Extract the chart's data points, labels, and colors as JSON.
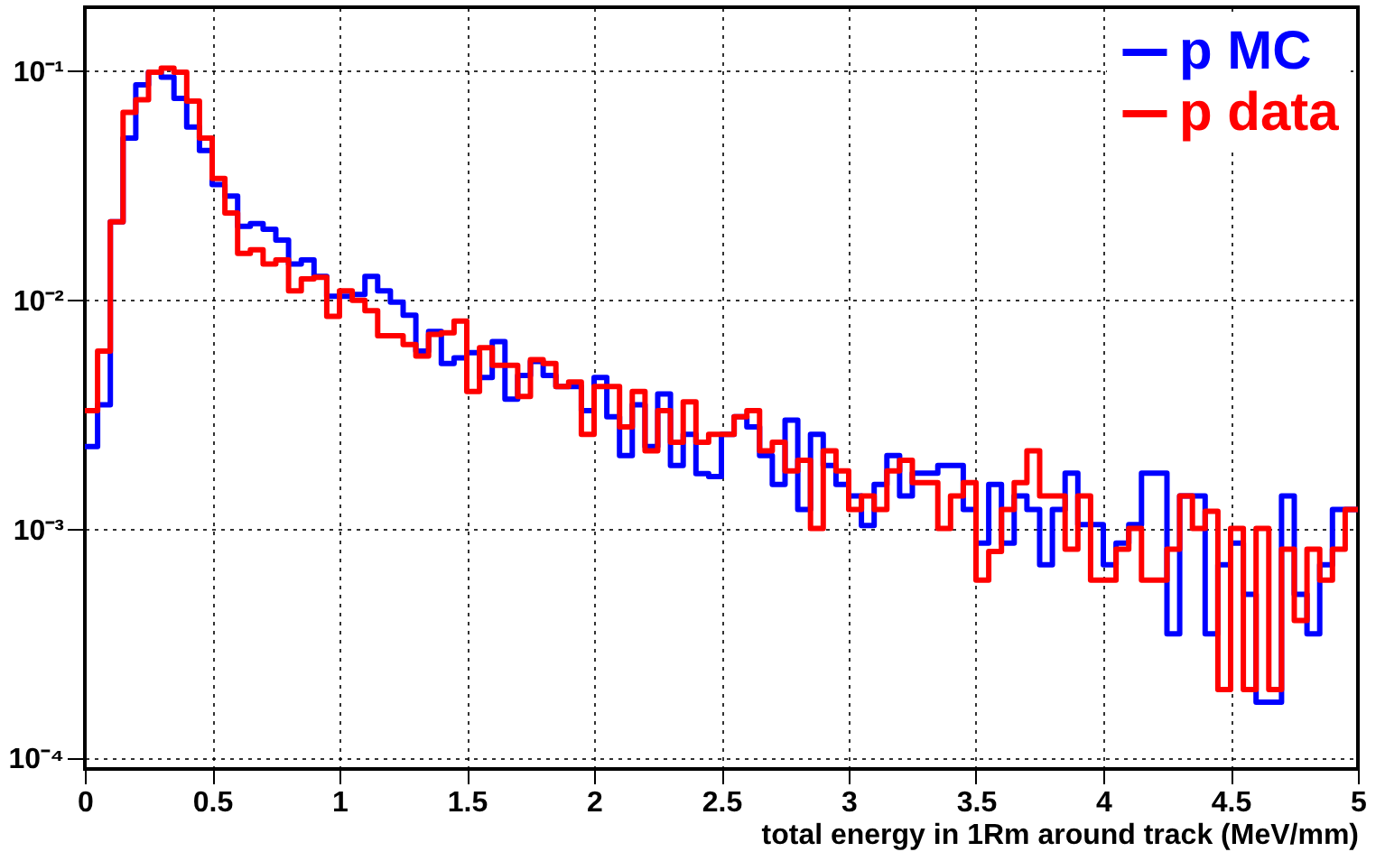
{
  "chart_data": {
    "type": "histogram",
    "xlabel": "total energy in 1Rm around track (MeV/mm)",
    "bins": [
      0,
      0.05,
      0.1,
      0.15,
      0.2,
      0.25,
      0.3,
      0.35,
      0.4,
      0.45,
      0.5,
      0.55,
      0.6,
      0.65,
      0.7,
      0.75,
      0.8,
      0.85,
      0.9,
      0.95,
      1,
      1.05,
      1.1,
      1.15,
      1.2,
      1.25,
      1.3,
      1.35,
      1.4,
      1.45,
      1.5,
      1.55,
      1.6,
      1.65,
      1.7,
      1.75,
      1.8,
      1.85,
      1.9,
      1.95,
      2,
      2.05,
      2.1,
      2.15,
      2.2,
      2.25,
      2.3,
      2.35,
      2.4,
      2.45,
      2.5,
      2.55,
      2.6,
      2.65,
      2.7,
      2.75,
      2.8,
      2.85,
      2.9,
      2.95,
      3,
      3.05,
      3.1,
      3.15,
      3.2,
      3.25,
      3.3,
      3.35,
      3.4,
      3.45,
      3.5,
      3.55,
      3.6,
      3.65,
      3.7,
      3.75,
      3.8,
      3.85,
      3.9,
      3.95,
      4,
      4.05,
      4.1,
      4.15,
      4.2,
      4.25,
      4.3,
      4.35,
      4.4,
      4.45,
      4.5,
      4.55,
      4.6,
      4.65,
      4.7,
      4.75,
      4.8,
      4.85,
      4.9,
      4.95,
      5
    ],
    "series": [
      {
        "name": "p MC",
        "color": "#0000ff",
        "values": [
          0.0023,
          0.0035,
          0.022,
          0.051,
          0.087,
          0.099,
          0.094,
          0.076,
          0.057,
          0.045,
          0.032,
          0.0285,
          0.021,
          0.0216,
          0.0204,
          0.0183,
          0.0144,
          0.015,
          0.0127,
          0.0104,
          0.0104,
          0.0106,
          0.0127,
          0.011,
          0.0098,
          0.0086,
          0.006,
          0.0073,
          0.0053,
          0.0056,
          0.0059,
          0.0046,
          0.0066,
          0.0037,
          0.0047,
          0.0054,
          0.0047,
          0.0042,
          0.0042,
          0.0033,
          0.0046,
          0.0031,
          0.0021,
          0.0035,
          0.0023,
          0.0039,
          0.0019,
          0.0026,
          0.00175,
          0.0017,
          0.0026,
          0.0031,
          0.0028,
          0.0021,
          0.00157,
          0.003,
          0.00122,
          0.0026,
          0.0019,
          0.00157,
          0.0014,
          0.00104,
          0.00157,
          0.0021,
          0.0014,
          0.00176,
          0.00176,
          0.0019,
          0.0019,
          0.00122,
          0.00087,
          0.00157,
          0.00087,
          0.0014,
          0.00122,
          0.0007,
          0.00122,
          0.00176,
          0.00105,
          0.00105,
          0.0007,
          0.00087,
          0.00105,
          0.00176,
          0.00176,
          0.00035,
          0.0014,
          0.0014,
          0.00035,
          0.0007,
          0.00087,
          0.00052,
          0.000176,
          0.000176,
          0.0014,
          0.00052,
          0.00035,
          0.0007,
          0.00122,
          0.00122
        ]
      },
      {
        "name": "p data",
        "color": "#ff0000",
        "values": [
          0.0033,
          0.006,
          0.022,
          0.066,
          0.075,
          0.099,
          0.103,
          0.099,
          0.074,
          0.051,
          0.034,
          0.024,
          0.016,
          0.0166,
          0.0144,
          0.015,
          0.011,
          0.0124,
          0.0126,
          0.0085,
          0.011,
          0.01,
          0.009,
          0.007,
          0.007,
          0.0064,
          0.0057,
          0.0071,
          0.0072,
          0.0081,
          0.004,
          0.0062,
          0.0052,
          0.0052,
          0.0038,
          0.0055,
          0.0053,
          0.0042,
          0.0044,
          0.0026,
          0.0042,
          0.0042,
          0.0028,
          0.004,
          0.0022,
          0.0033,
          0.0024,
          0.0036,
          0.0024,
          0.0026,
          0.0026,
          0.0031,
          0.0033,
          0.0022,
          0.0024,
          0.0018,
          0.002,
          0.00101,
          0.0022,
          0.0018,
          0.00122,
          0.0014,
          0.00122,
          0.0018,
          0.002,
          0.0016,
          0.0016,
          0.00101,
          0.0014,
          0.0016,
          0.0006,
          0.0008,
          0.00122,
          0.0016,
          0.0022,
          0.0014,
          0.0014,
          0.00082,
          0.0014,
          0.0006,
          0.0006,
          0.00082,
          0.00101,
          0.0006,
          0.0006,
          0.00082,
          0.0014,
          0.00101,
          0.0012,
          0.0002,
          0.00101,
          0.0002,
          0.00101,
          0.0002,
          0.00082,
          0.0004,
          0.00082,
          0.0006,
          0.00082,
          0.00122
        ]
      }
    ],
    "xlim": [
      0,
      5
    ],
    "xticks": [
      0,
      0.5,
      1,
      1.5,
      2,
      2.5,
      3,
      3.5,
      4,
      4.5,
      5
    ],
    "log": "y",
    "ylim": [
      9e-05,
      0.19
    ],
    "yticks": [
      {
        "value": 0.0001,
        "label": "10⁻⁴"
      },
      {
        "value": 0.001,
        "label": "10⁻³"
      },
      {
        "value": 0.01,
        "label": "10⁻²"
      },
      {
        "value": 0.1,
        "label": "10⁻¹"
      }
    ],
    "grid": true,
    "legend": "top right",
    "line_style": "solid",
    "marker": "none"
  }
}
